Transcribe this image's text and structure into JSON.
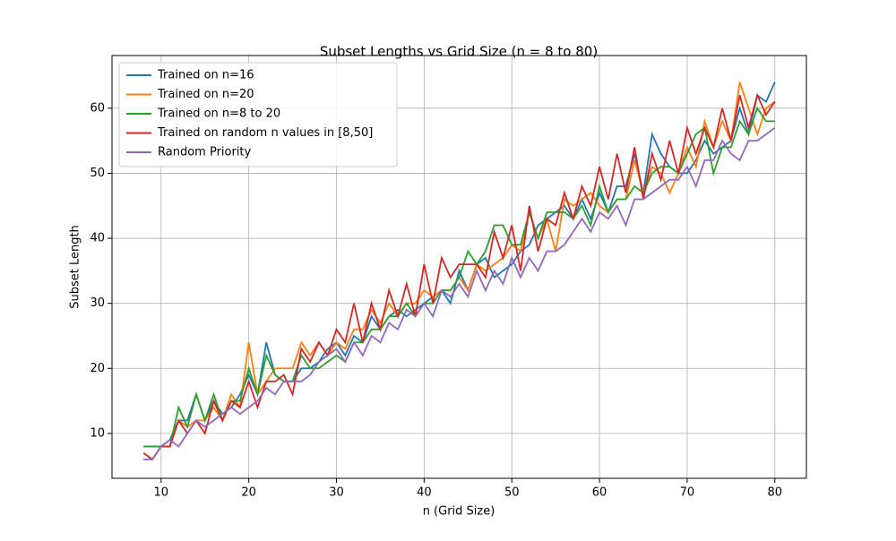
{
  "chart_data": {
    "type": "line",
    "title": "Subset Lengths vs Grid Size (n = 8 to 80)",
    "xlabel": "n (Grid Size)",
    "ylabel": "Subset Length",
    "x": [
      8,
      9,
      10,
      11,
      12,
      13,
      14,
      15,
      16,
      17,
      18,
      19,
      20,
      21,
      22,
      23,
      24,
      25,
      26,
      27,
      28,
      29,
      30,
      31,
      32,
      33,
      34,
      35,
      36,
      37,
      38,
      39,
      40,
      41,
      42,
      43,
      44,
      45,
      46,
      47,
      48,
      49,
      50,
      51,
      52,
      53,
      54,
      55,
      56,
      57,
      58,
      59,
      60,
      61,
      62,
      63,
      64,
      65,
      66,
      67,
      68,
      69,
      70,
      71,
      72,
      73,
      74,
      75,
      76,
      77,
      78,
      79,
      80
    ],
    "series": [
      {
        "name": "Trained on n=16",
        "color": "#1f77b4",
        "values": [
          8,
          8,
          8,
          9,
          12,
          12,
          16,
          12,
          15,
          13,
          14,
          16,
          19,
          16,
          24,
          19,
          18,
          18,
          20,
          20,
          21,
          23,
          24,
          22,
          25,
          24,
          28,
          26,
          28,
          29,
          28,
          29,
          30,
          31,
          32,
          30,
          35,
          32,
          36,
          37,
          34,
          35,
          36,
          38,
          39,
          42,
          43,
          44,
          45,
          43,
          46,
          43,
          47,
          44,
          48,
          48,
          53,
          47,
          56,
          53,
          51,
          50,
          50,
          52,
          55,
          53,
          54,
          55,
          60,
          56,
          62,
          61,
          64
        ]
      },
      {
        "name": "Trained on n=20",
        "color": "#ff7f0e",
        "values": [
          7,
          6,
          8,
          8,
          12,
          11,
          12,
          12,
          14,
          12,
          16,
          14,
          24,
          16,
          18,
          20,
          20,
          20,
          24,
          22,
          24,
          22,
          24,
          23,
          26,
          26,
          29,
          27,
          30,
          28,
          30,
          30,
          32,
          31,
          32,
          32,
          34,
          32,
          36,
          35,
          36,
          37,
          39,
          38,
          44,
          40,
          43,
          38,
          46,
          45,
          46,
          47,
          45,
          44,
          46,
          46,
          52,
          47,
          51,
          50,
          47,
          50,
          54,
          51,
          58,
          54,
          58,
          55,
          64,
          60,
          56,
          60,
          61
        ]
      },
      {
        "name": "Trained on n=8 to 20",
        "color": "#2ca02c",
        "values": [
          8,
          8,
          8,
          8,
          14,
          11,
          16,
          12,
          16,
          12,
          15,
          15,
          20,
          16,
          22,
          19,
          18,
          18,
          22,
          20,
          20,
          21,
          22,
          21,
          24,
          24,
          26,
          26,
          28,
          28,
          30,
          28,
          30,
          30,
          32,
          32,
          34,
          38,
          36,
          38,
          42,
          42,
          39,
          39,
          44,
          40,
          44,
          44,
          44,
          43,
          45,
          42,
          48,
          44,
          46,
          46,
          48,
          47,
          50,
          51,
          51,
          50,
          53,
          56,
          57,
          50,
          54,
          54,
          58,
          56,
          60,
          58,
          58
        ]
      },
      {
        "name": "Trained on random n values in [8,50]",
        "color": "#d62728",
        "values": [
          7,
          6,
          8,
          8,
          12,
          10,
          12,
          10,
          15,
          12,
          15,
          14,
          18,
          14,
          18,
          18,
          19,
          16,
          23,
          21,
          24,
          22,
          26,
          24,
          30,
          24,
          30,
          26,
          32,
          28,
          33,
          28,
          36,
          30,
          37,
          34,
          36,
          36,
          36,
          34,
          41,
          37,
          42,
          35,
          45,
          38,
          43,
          42,
          47,
          43,
          48,
          45,
          51,
          46,
          53,
          47,
          54,
          46,
          53,
          49,
          55,
          50,
          57,
          53,
          57,
          54,
          60,
          55,
          62,
          57,
          62,
          59,
          61
        ]
      },
      {
        "name": "Random Priority",
        "color": "#9467bd",
        "values": [
          6,
          6,
          8,
          9,
          8,
          10,
          12,
          11,
          12,
          13,
          14,
          13,
          14,
          15,
          17,
          16,
          18,
          18,
          18,
          19,
          21,
          22,
          23,
          21,
          24,
          22,
          25,
          24,
          27,
          26,
          29,
          28,
          30,
          28,
          32,
          31,
          33,
          31,
          35,
          32,
          35,
          33,
          37,
          34,
          37,
          35,
          38,
          38,
          39,
          41,
          43,
          41,
          44,
          43,
          45,
          42,
          46,
          46,
          47,
          48,
          49,
          49,
          51,
          48,
          52,
          52,
          55,
          53,
          52,
          55,
          55,
          56,
          57
        ]
      }
    ],
    "xlim": [
      4.4,
      83.6
    ],
    "xticks": [
      10,
      20,
      30,
      40,
      50,
      60,
      70,
      80
    ],
    "ylim": [
      3.1,
      68.1
    ],
    "yticks": [
      10,
      20,
      30,
      40,
      50,
      60
    ],
    "grid": true,
    "legend": "upper left"
  }
}
